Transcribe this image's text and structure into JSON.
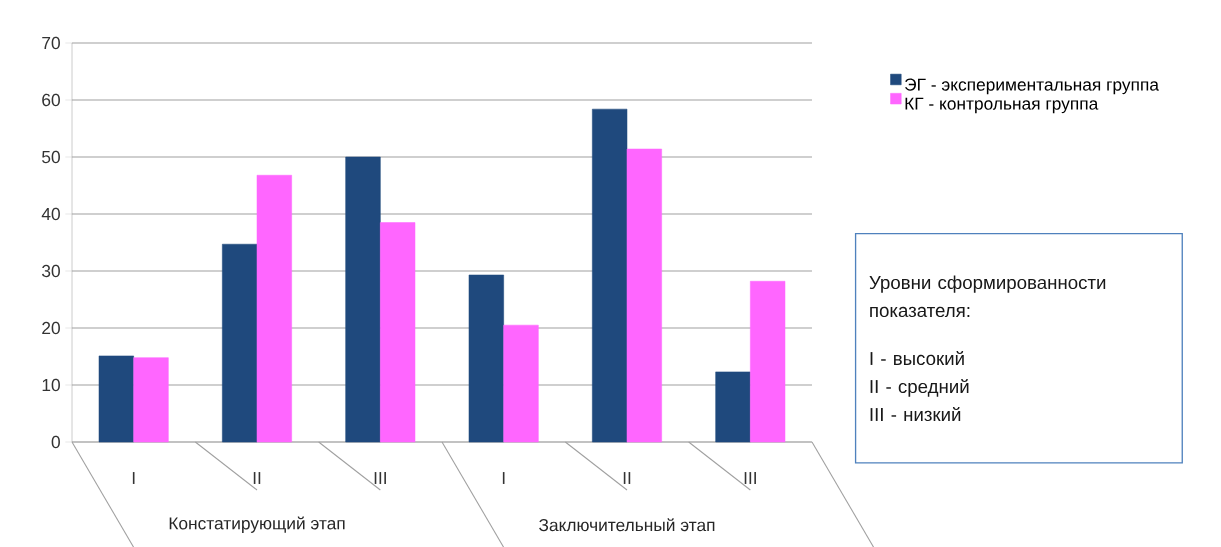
{
  "chart_data": {
    "type": "bar",
    "categories": [
      "I",
      "II",
      "III",
      "I",
      "II",
      "III"
    ],
    "series": [
      {
        "name": "ЭГ - экспериментальная группа",
        "color": "#1f497d",
        "values": [
          15.1,
          34.7,
          50.0,
          29.3,
          58.4,
          12.3
        ]
      },
      {
        "name": "КГ - контрольная группа",
        "color": "#ff66ff",
        "values": [
          14.8,
          46.8,
          38.5,
          20.5,
          51.4,
          28.2
        ]
      }
    ],
    "ylim": [
      0,
      70
    ],
    "yticks": [
      0,
      10,
      20,
      30,
      40,
      50,
      60,
      70
    ],
    "grid": "y",
    "legend": "right",
    "annotations": [
      "Констатирующий этап",
      "Заключительный этап",
      "Уровни сформированности показателя:",
      "I - высокий",
      "II - средний",
      "III - низкий"
    ]
  }
}
